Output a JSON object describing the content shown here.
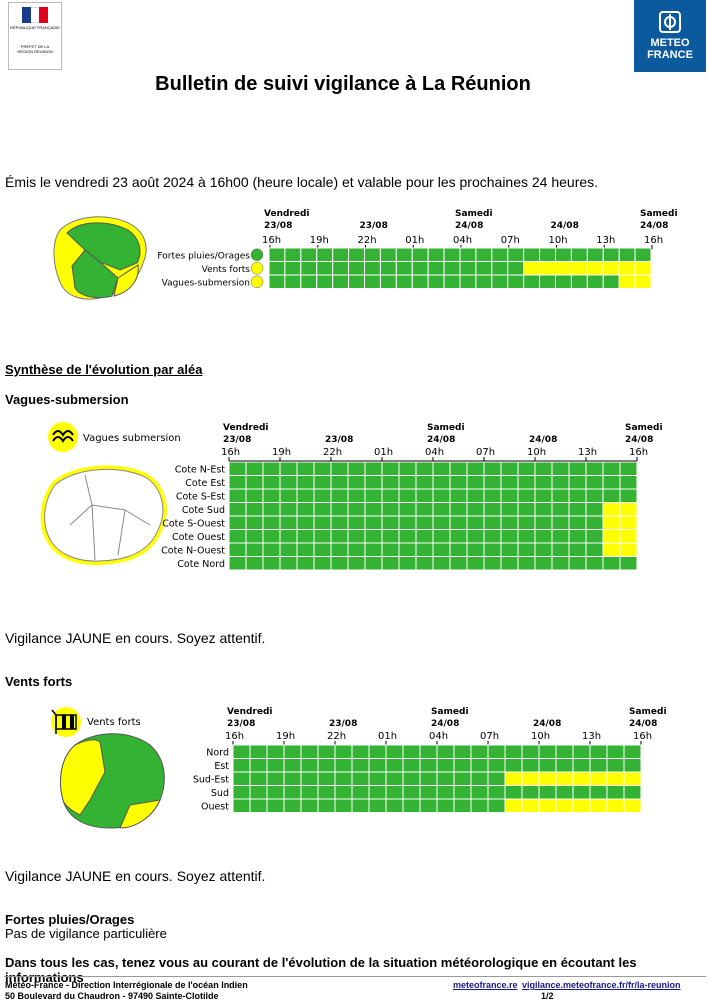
{
  "header": {
    "prefecture_label": "PRÉFET DE LA RÉGION RÉUNION",
    "republic_label": "RÉPUBLIQUE FRANÇAISE",
    "meteo_line1": "METEO",
    "meteo_line2": "FRANCE",
    "title": "Bulletin de suivi vigilance à La Réunion"
  },
  "emission": "Émis le vendredi 23 août 2024 à 16h00 (heure locale) et valable pour les prochaines 24 heures.",
  "colors": {
    "green": "#34b233",
    "yellow": "#ffff00",
    "grid": "#ffffff",
    "blue": "#0c5a9e"
  },
  "timeline": {
    "days": [
      {
        "name": "Vendredi",
        "date": "23/08",
        "hour_index": 0
      },
      {
        "name": "",
        "date": "23/08",
        "hour_index": 2
      },
      {
        "name": "Samedi",
        "date": "24/08",
        "hour_index": 4
      },
      {
        "name": "",
        "date": "24/08",
        "hour_index": 6
      },
      {
        "name": "Samedi",
        "date": "24/08",
        "hour_index": 8
      }
    ],
    "hours": [
      "16h",
      "19h",
      "22h",
      "01h",
      "04h",
      "07h",
      "10h",
      "13h",
      "16h"
    ]
  },
  "summary": {
    "rows": [
      {
        "label": "Fortes pluies/Orages",
        "icon": "rain-icon",
        "yellow_from": 24
      },
      {
        "label": "Vents forts",
        "icon": "wind-icon",
        "yellow_from": 16
      },
      {
        "label": "Vagues-submersion",
        "icon": "wave-icon",
        "yellow_from": 22
      }
    ]
  },
  "synthese_title": "Synthèse de l'évolution par aléa",
  "vagues": {
    "title": "Vagues-submersion",
    "legend": "Vagues submersion",
    "icon": "wave-icon",
    "rows": [
      {
        "label": "Cote N-Est",
        "yellow_from": 24
      },
      {
        "label": "Cote Est",
        "yellow_from": 24
      },
      {
        "label": "Cote S-Est",
        "yellow_from": 24
      },
      {
        "label": "Cote Sud",
        "yellow_from": 22
      },
      {
        "label": "Cote S-Ouest",
        "yellow_from": 22
      },
      {
        "label": "Cote Ouest",
        "yellow_from": 22
      },
      {
        "label": "Cote N-Ouest",
        "yellow_from": 22
      },
      {
        "label": "Cote Nord",
        "yellow_from": 24
      }
    ],
    "status": "Vigilance JAUNE en cours. Soyez attentif."
  },
  "vents": {
    "title": "Vents forts",
    "legend": "Vents forts",
    "icon": "wind-icon",
    "rows": [
      {
        "label": "Nord",
        "yellow_from": 24
      },
      {
        "label": "Est",
        "yellow_from": 24
      },
      {
        "label": "Sud-Est",
        "yellow_from": 16
      },
      {
        "label": "Sud",
        "yellow_from": 24
      },
      {
        "label": "Ouest",
        "yellow_from": 16
      }
    ],
    "status": "Vigilance JAUNE en cours. Soyez attentif."
  },
  "pluies": {
    "title": "Fortes pluies/Orages",
    "text": "Pas de vigilance particulière"
  },
  "closing": "Dans tous les cas, tenez vous au courant de l'évolution de la situation météorologique en écoutant les informations",
  "footer": {
    "line1": "Météo-France - Direction Interrégionale de l'océan Indien",
    "line2": "50 Boulevard du Chaudron - 97490 Sainte-Clotilde",
    "link1": "meteofrance.re",
    "link2": "vigilance.meteofrance.fr/fr/la-reunion",
    "page": "1/2"
  }
}
